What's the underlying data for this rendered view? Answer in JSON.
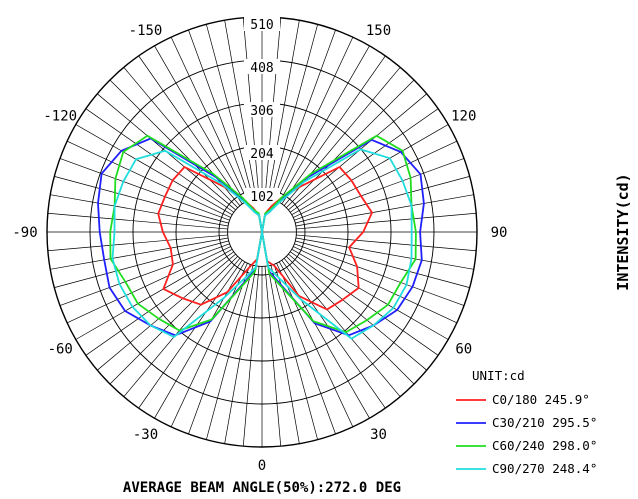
{
  "chart_data": {
    "type": "polar",
    "unit_label": "UNIT:cd",
    "ylabel": "INTENSITY(cd)",
    "footer": "AVERAGE BEAM ANGLE(50%):272.0 DEG",
    "radial_max": 510,
    "radial_ticks": [
      "102",
      "204",
      "306",
      "408",
      "510"
    ],
    "angle_labels": [
      {
        "deg": 0,
        "text": "0"
      },
      {
        "deg": 30,
        "text": "30"
      },
      {
        "deg": 60,
        "text": "60"
      },
      {
        "deg": 90,
        "text": "90"
      },
      {
        "deg": 120,
        "text": "120"
      },
      {
        "deg": 150,
        "text": "150"
      },
      {
        "deg": -30,
        "text": "-30"
      },
      {
        "deg": -60,
        "text": "-60"
      },
      {
        "deg": -90,
        "text": "-90"
      },
      {
        "deg": -120,
        "text": "-120"
      },
      {
        "deg": -150,
        "text": "-150"
      }
    ],
    "angles": [
      0,
      10,
      20,
      30,
      40,
      50,
      60,
      70,
      80,
      90,
      100,
      110,
      120,
      130,
      140,
      150,
      160,
      170,
      180
    ],
    "series": [
      {
        "name": "C0/180 245.9°",
        "color": "#ff2020",
        "right": [
          0,
          70,
          85,
          175,
          240,
          250,
          265,
          240,
          210,
          240,
          265,
          250,
          245,
          240,
          140,
          95,
          65,
          45,
          0
        ],
        "left": [
          0,
          65,
          90,
          165,
          225,
          245,
          270,
          225,
          220,
          235,
          250,
          245,
          245,
          240,
          140,
          90,
          60,
          40,
          0
        ]
      },
      {
        "name": "C30/210 295.5°",
        "color": "#2020ff",
        "right": [
          0,
          95,
          135,
          250,
          320,
          345,
          370,
          380,
          385,
          375,
          390,
          400,
          380,
          340,
          170,
          85,
          50,
          40,
          0
        ],
        "left": [
          0,
          90,
          130,
          245,
          320,
          345,
          375,
          385,
          380,
          385,
          395,
          405,
          385,
          345,
          170,
          85,
          50,
          40,
          0
        ]
      },
      {
        "name": "C60/240 298.0°",
        "color": "#20dd20",
        "right": [
          0,
          100,
          140,
          245,
          310,
          325,
          345,
          350,
          370,
          365,
          360,
          375,
          385,
          355,
          180,
          95,
          55,
          45,
          0
        ],
        "left": [
          0,
          95,
          135,
          240,
          305,
          320,
          340,
          345,
          365,
          360,
          355,
          370,
          380,
          355,
          180,
          95,
          55,
          45,
          0
        ]
      },
      {
        "name": "C90/270 248.4°",
        "color": "#20dddd",
        "right": [
          0,
          85,
          115,
          185,
          330,
          345,
          360,
          365,
          360,
          355,
          360,
          355,
          350,
          305,
          155,
          80,
          50,
          40,
          0
        ],
        "left": [
          0,
          85,
          115,
          180,
          325,
          345,
          355,
          360,
          360,
          350,
          355,
          350,
          345,
          300,
          150,
          80,
          50,
          40,
          0
        ]
      }
    ]
  }
}
